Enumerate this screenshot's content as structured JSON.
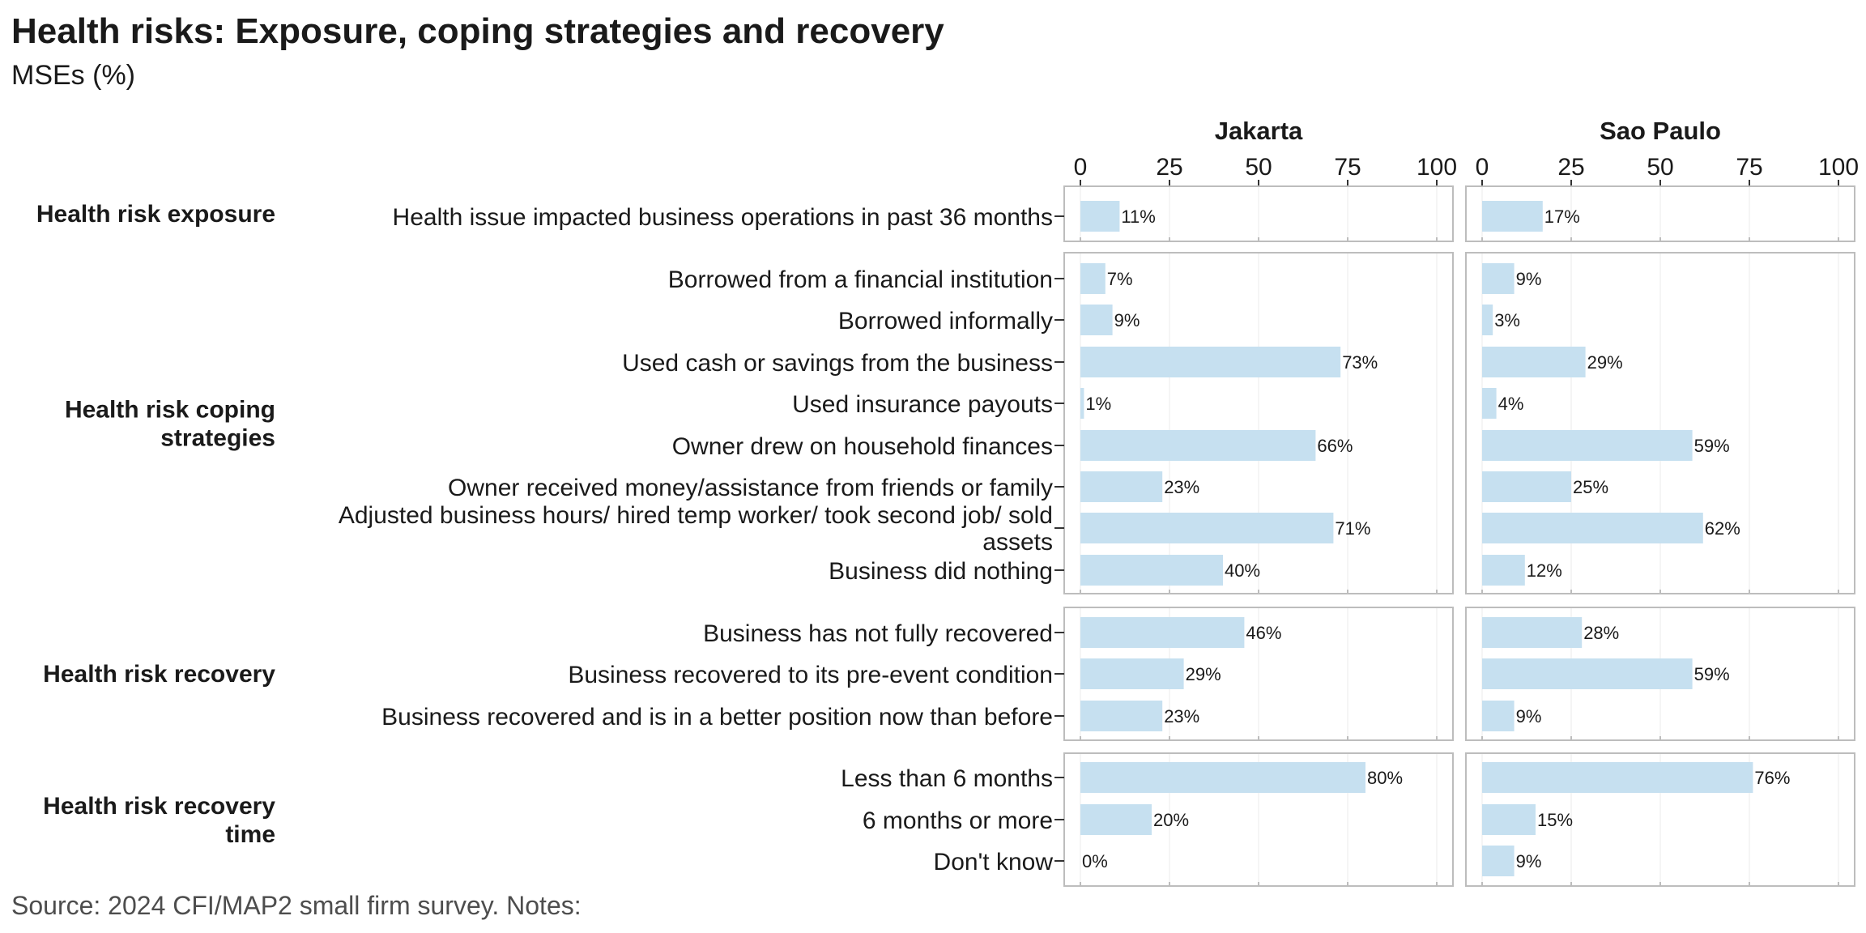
{
  "title": "Health risks: Exposure, coping strategies and recovery",
  "subtitle": "MSEs (%)",
  "source": "Source: 2024 CFI/MAP2 small firm survey. Notes:",
  "colors": {
    "bar": "#c6e0f0",
    "panel_border": "#bdbdbd",
    "grid": "#ebebeb"
  },
  "chart_data": {
    "type": "bar",
    "orientation": "horizontal",
    "facets": [
      "Jakarta",
      "Sao Paulo"
    ],
    "xlim": [
      0,
      100
    ],
    "xticks": [
      0,
      25,
      50,
      75,
      100
    ],
    "value_suffix": "%",
    "groups": [
      {
        "label": "Health risk exposure",
        "categories": [
          "Health issue impacted business operations in past 36 months"
        ],
        "values": {
          "Jakarta": [
            11
          ],
          "Sao Paulo": [
            17
          ]
        }
      },
      {
        "label": "Health risk coping strategies",
        "categories": [
          "Borrowed from a financial institution",
          "Borrowed informally",
          "Used cash or savings from the business",
          "Used insurance payouts",
          "Owner drew on household finances",
          "Owner received money/assistance from friends or family",
          "Adjusted business hours/ hired temp worker/ took second job/ sold assets",
          "Business did nothing"
        ],
        "values": {
          "Jakarta": [
            7,
            9,
            73,
            1,
            66,
            23,
            71,
            40
          ],
          "Sao Paulo": [
            9,
            3,
            29,
            4,
            59,
            25,
            62,
            12
          ]
        }
      },
      {
        "label": "Health risk recovery",
        "categories": [
          "Business has not fully recovered",
          "Business recovered to its pre-event condition",
          "Business recovered and is in a better position now than before"
        ],
        "values": {
          "Jakarta": [
            46,
            29,
            23
          ],
          "Sao Paulo": [
            28,
            59,
            9
          ]
        }
      },
      {
        "label": "Health risk recovery time",
        "categories": [
          "Less than 6 months",
          "6 months or more",
          "Don't know"
        ],
        "values": {
          "Jakarta": [
            80,
            20,
            0
          ],
          "Sao Paulo": [
            76,
            15,
            9
          ]
        }
      }
    ]
  }
}
